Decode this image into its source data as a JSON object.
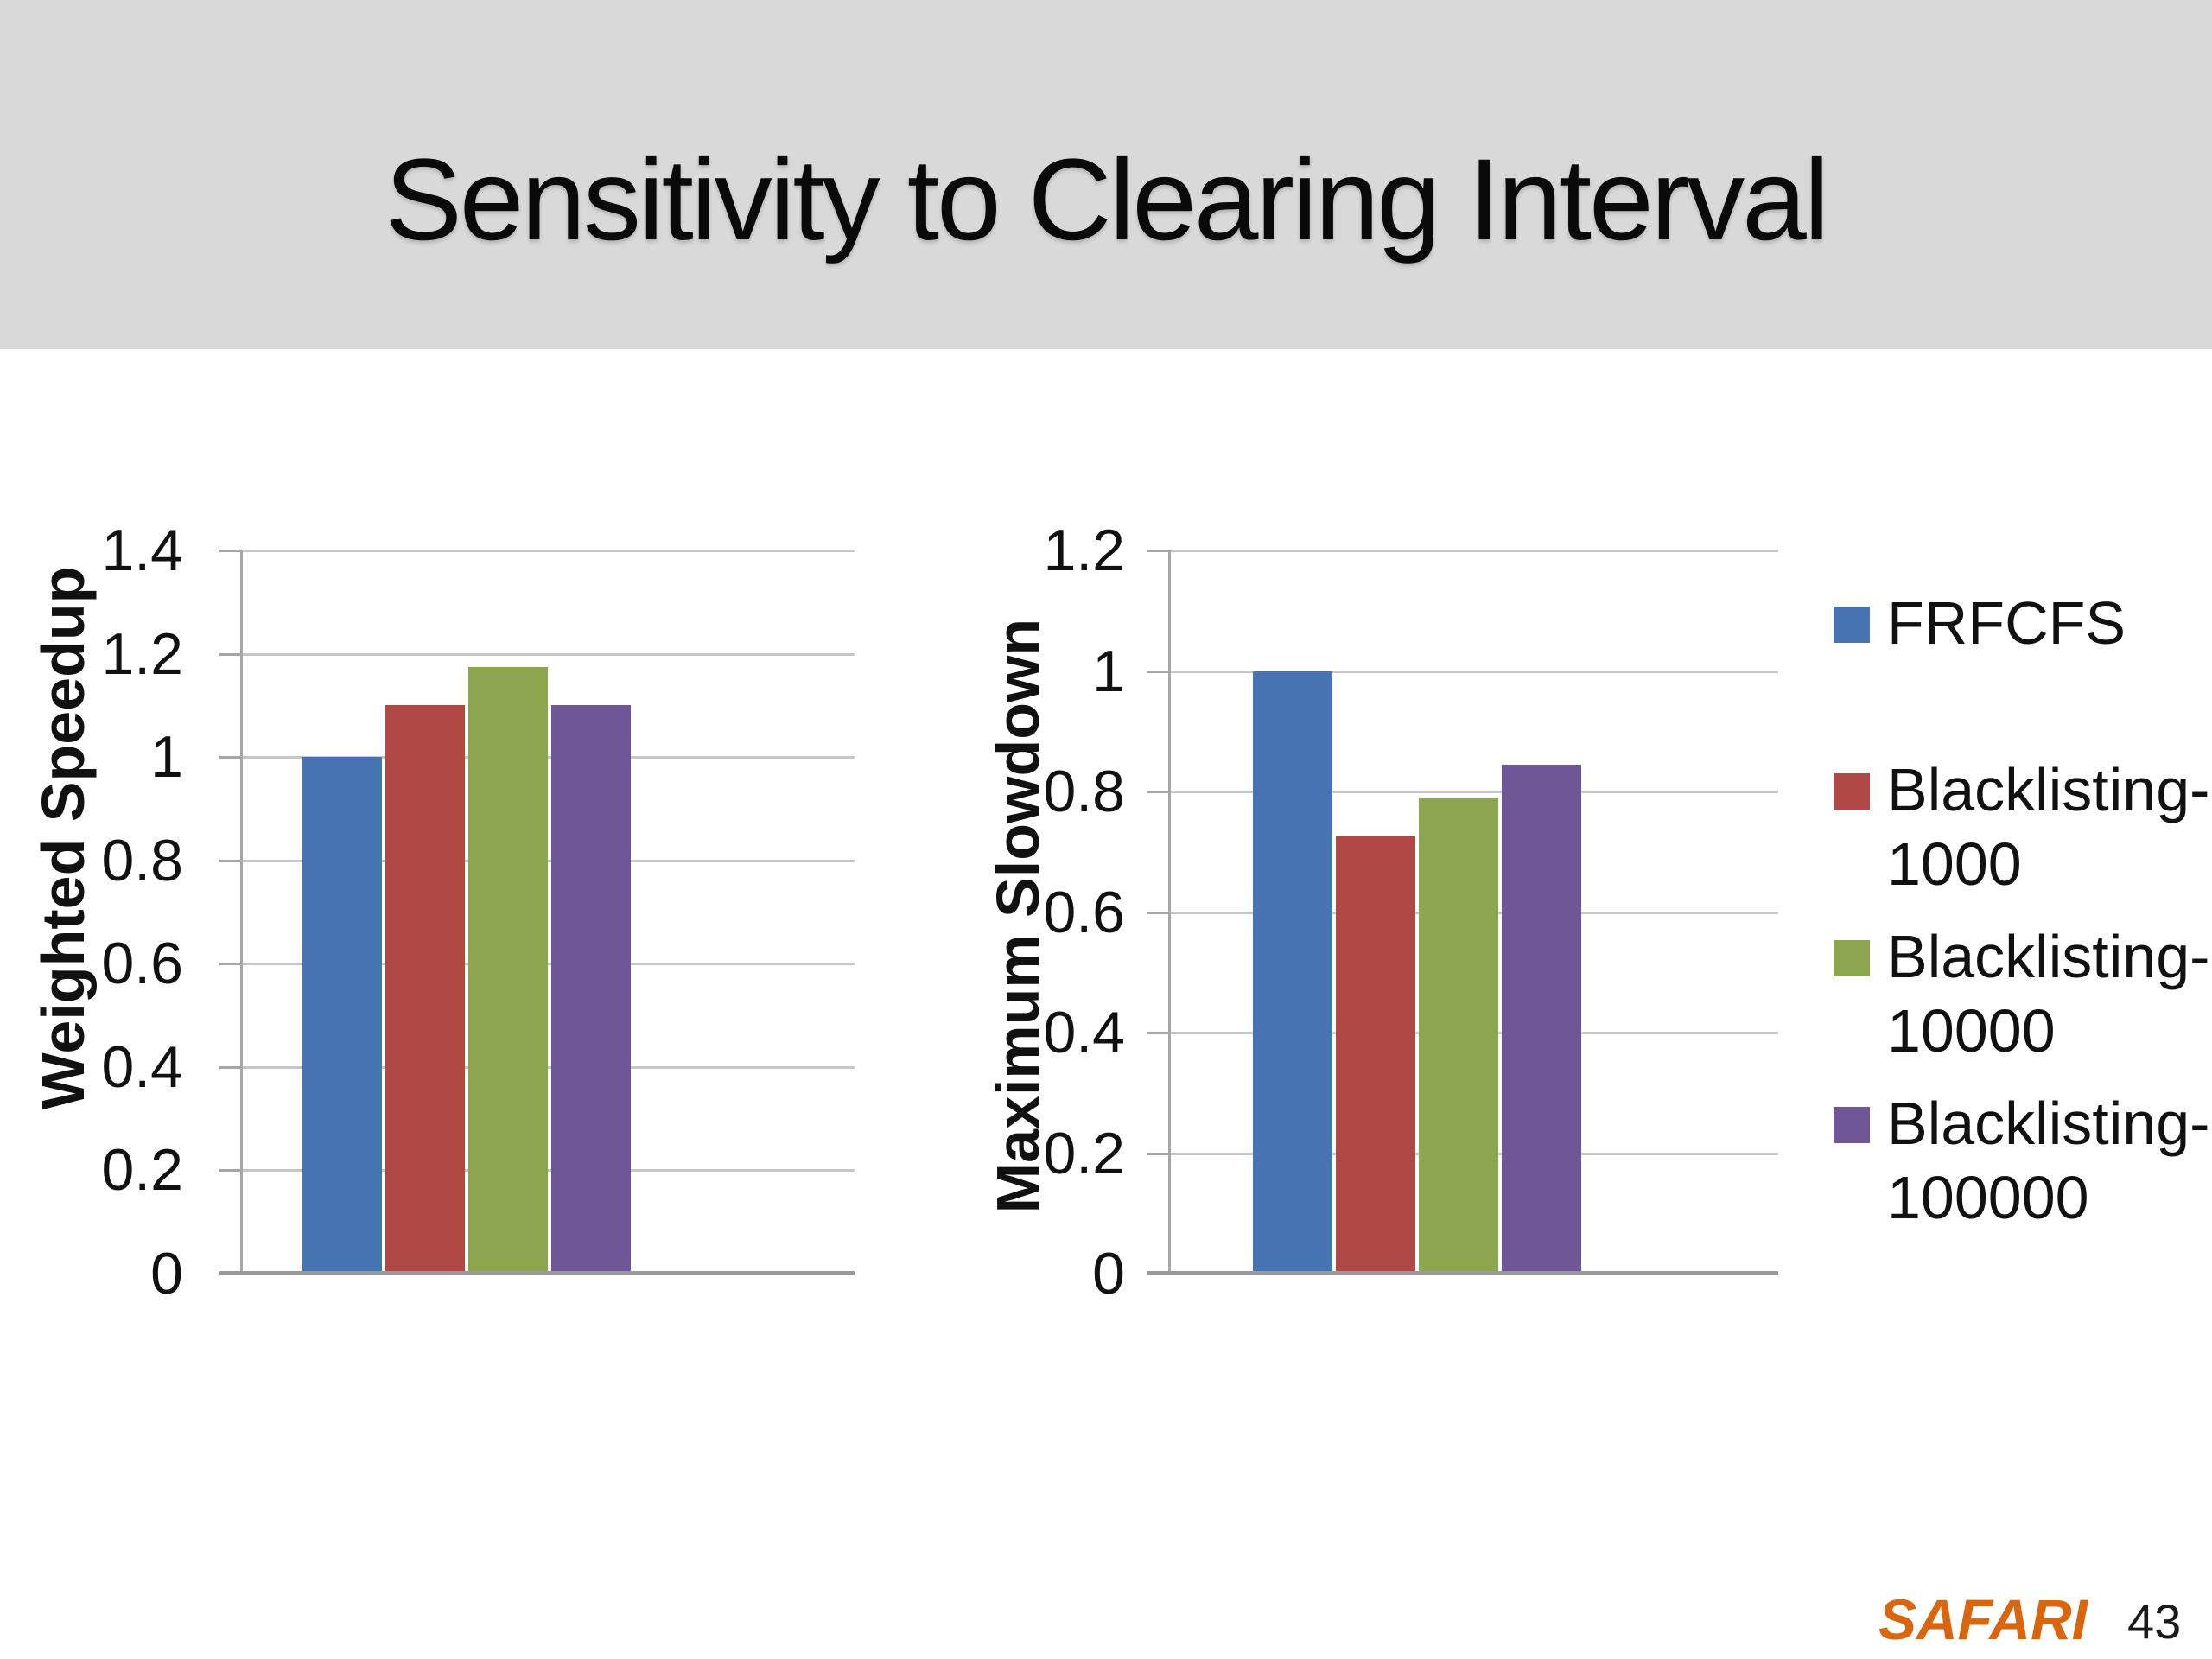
{
  "slide": {
    "title": "Sensitivity to Clearing Interval",
    "logo_text": "SAFARI",
    "page_number": "43"
  },
  "colors": {
    "header_band": "#D9D9D9",
    "logo_orange": "#D9650F",
    "series_blue": "#4674B0",
    "series_red": "#B04945",
    "series_green": "#8CA64F",
    "series_purple": "#6F5697"
  },
  "legend": {
    "position": "right",
    "items": [
      {
        "lines": [
          "FRFCFS"
        ],
        "color": "#4674B0"
      },
      {
        "lines": [
          "Blacklisting-",
          "1000"
        ],
        "color": "#B04945"
      },
      {
        "lines": [
          "Blacklisting-",
          "10000"
        ],
        "color": "#8CA64F"
      },
      {
        "lines": [
          "Blacklisting-",
          "100000"
        ],
        "color": "#6F5697"
      }
    ]
  },
  "chart_data": [
    {
      "type": "bar",
      "title": "",
      "xlabel": "",
      "ylabel": "Weighted Speedup",
      "categories": [
        ""
      ],
      "series": [
        {
          "name": "FRFCFS",
          "color": "#4674B0",
          "values": [
            1.0
          ]
        },
        {
          "name": "Blacklisting-1000",
          "color": "#B04945",
          "values": [
            1.1
          ]
        },
        {
          "name": "Blacklisting-10000",
          "color": "#8CA64F",
          "values": [
            1.175
          ]
        },
        {
          "name": "Blacklisting-100000",
          "color": "#6F5697",
          "values": [
            1.1
          ]
        }
      ],
      "ylim": [
        0,
        1.4
      ],
      "ytick_labels": [
        "1.4",
        "1.2",
        "1",
        "0.8",
        "0.6",
        "0.4",
        "0.2",
        "0"
      ],
      "grid": true,
      "legend_position": "none"
    },
    {
      "type": "bar",
      "title": "",
      "xlabel": "",
      "ylabel": "Maximum Slowdown",
      "categories": [
        ""
      ],
      "series": [
        {
          "name": "FRFCFS",
          "color": "#4674B0",
          "values": [
            1.0
          ]
        },
        {
          "name": "Blacklisting-1000",
          "color": "#B04945",
          "values": [
            0.725
          ]
        },
        {
          "name": "Blacklisting-10000",
          "color": "#8CA64F",
          "values": [
            0.79
          ]
        },
        {
          "name": "Blacklisting-100000",
          "color": "#6F5697",
          "values": [
            0.845
          ]
        }
      ],
      "ylim": [
        0,
        1.2
      ],
      "ytick_labels": [
        "1.2",
        "1",
        "0.8",
        "0.6",
        "0.4",
        "0.2",
        "0"
      ],
      "grid": true,
      "legend_position": "right"
    }
  ]
}
